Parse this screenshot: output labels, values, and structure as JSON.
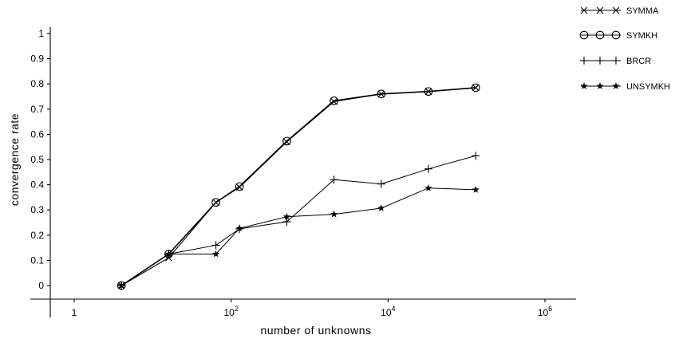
{
  "chart_data": {
    "type": "line",
    "xscale": "log",
    "xlabel": "number of unknowns",
    "ylabel": "convergence rate",
    "xlim": [
      0.5,
      1000000
    ],
    "ylim": [
      -0.05,
      1.0
    ],
    "grid": false,
    "legend_position": "right",
    "x_ticks": [
      {
        "value": 1,
        "label": "1",
        "base": "1",
        "exp": ""
      },
      {
        "value": 100,
        "label": "10^2",
        "base": "10",
        "exp": "2"
      },
      {
        "value": 10000,
        "label": "10^4",
        "base": "10",
        "exp": "4"
      },
      {
        "value": 1000000,
        "label": "10^6",
        "base": "10",
        "exp": "6"
      }
    ],
    "y_ticks": [
      {
        "value": 0,
        "label": "0"
      },
      {
        "value": 0.1,
        "label": "0.1"
      },
      {
        "value": 0.2,
        "label": "0.2"
      },
      {
        "value": 0.3,
        "label": "0.3"
      },
      {
        "value": 0.4,
        "label": "0.4"
      },
      {
        "value": 0.5,
        "label": "0.5"
      },
      {
        "value": 0.6,
        "label": "0.6"
      },
      {
        "value": 0.7,
        "label": "0.7"
      },
      {
        "value": 0.8,
        "label": "0.8"
      },
      {
        "value": 0.9,
        "label": "0.9"
      },
      {
        "value": 1,
        "label": "1"
      }
    ],
    "x": [
      4,
      16,
      64,
      128,
      512,
      2048,
      8192,
      32768,
      131072
    ],
    "series": [
      {
        "name": "SYMMA",
        "marker": "x",
        "values": [
          0.0,
          0.11,
          0.33,
          0.39,
          0.57,
          0.73,
          0.76,
          0.77,
          0.785
        ]
      },
      {
        "name": "SYMKH",
        "marker": "circle",
        "values": [
          0.0,
          0.125,
          0.33,
          0.393,
          0.573,
          0.733,
          0.76,
          0.77,
          0.785
        ]
      },
      {
        "name": "BRCR",
        "marker": "plus",
        "values": [
          0.0,
          0.125,
          0.16,
          0.225,
          0.253,
          0.42,
          0.403,
          0.463,
          0.515
        ]
      },
      {
        "name": "UNSYMKH",
        "marker": "star",
        "values": [
          0.0,
          0.125,
          0.125,
          0.227,
          0.273,
          0.283,
          0.307,
          0.387,
          0.38
        ]
      }
    ]
  }
}
